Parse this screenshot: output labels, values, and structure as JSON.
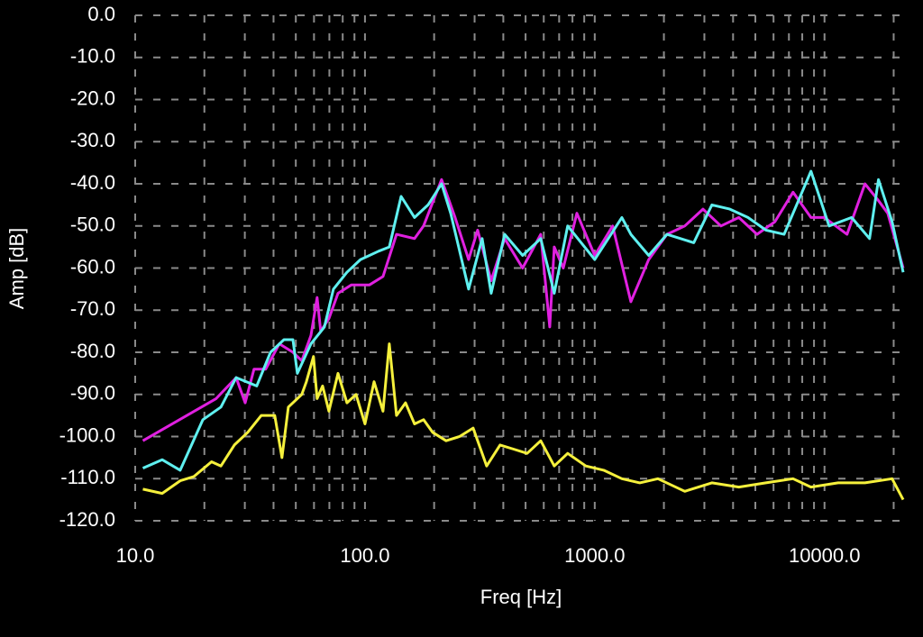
{
  "chart_data": {
    "type": "line",
    "x_label": "Freq [Hz]",
    "y_label": "Amp [dB]",
    "xscale": "log",
    "xlim": [
      10,
      22600
    ],
    "ylim": [
      -120,
      0
    ],
    "xticks": [
      {
        "value": 10,
        "label": "10.0"
      },
      {
        "value": 100,
        "label": "100.0"
      },
      {
        "value": 1000,
        "label": "1000.0"
      },
      {
        "value": 10000,
        "label": "10000.0"
      }
    ],
    "x_minor_ticks": [
      20,
      30,
      40,
      50,
      60,
      70,
      80,
      90,
      200,
      300,
      400,
      500,
      600,
      700,
      800,
      900,
      2000,
      3000,
      4000,
      5000,
      6000,
      7000,
      8000,
      9000,
      20000
    ],
    "yticks": [
      {
        "value": 0,
        "label": "0.0"
      },
      {
        "value": -10,
        "label": "-10.0"
      },
      {
        "value": -20,
        "label": "-20.0"
      },
      {
        "value": -30,
        "label": "-30.0"
      },
      {
        "value": -40,
        "label": "-40.0"
      },
      {
        "value": -50,
        "label": "-50.0"
      },
      {
        "value": -60,
        "label": "-60.0"
      },
      {
        "value": -70,
        "label": "-70.0"
      },
      {
        "value": -80,
        "label": "-80.0"
      },
      {
        "value": -90,
        "label": "-90.0"
      },
      {
        "value": -100,
        "label": "-100.0"
      },
      {
        "value": -110,
        "label": "-110.0"
      },
      {
        "value": -120,
        "label": "-120.0"
      }
    ],
    "grid": true,
    "series": [
      {
        "color": "#e020e0",
        "x": [
          10.8,
          22.5,
          27.5,
          30.1,
          32.9,
          37.0,
          42.4,
          48.6,
          53.1,
          58.2,
          61.9,
          64.2,
          69.7,
          76.3,
          87.3,
          104.6,
          119.8,
          137.2,
          164.3,
          179.8,
          215.4,
          246.8,
          282.5,
          309.2,
          354,
          405.5,
          485.3,
          582,
          636.8,
          666.4,
          729.5,
          835.7,
          1000,
          1197,
          1436,
          1718,
          2061,
          2466,
          2958,
          3540,
          4237,
          5082,
          6081,
          7295,
          8730,
          10000,
          12530,
          15000,
          17180,
          18840,
          22000
        ],
        "values": [
          -101,
          -91,
          -86,
          -92,
          -84,
          -84,
          -78,
          -80,
          -82,
          -76,
          -67,
          -75,
          -72,
          -66,
          -64,
          -64,
          -62,
          -52,
          -53,
          -50,
          -39,
          -48,
          -58,
          -51,
          -63,
          -53,
          -60,
          -52,
          -74,
          -55,
          -60,
          -47,
          -57,
          -50,
          -68,
          -58,
          -52,
          -50,
          -46,
          -50,
          -48,
          -52,
          -49,
          -42,
          -48,
          -48,
          -52,
          -40,
          -44,
          -47,
          -60
        ]
      },
      {
        "color": "#5ff0f0",
        "x": [
          10.8,
          13.1,
          15.7,
          19.7,
          23.6,
          27.5,
          33.8,
          38.8,
          44.4,
          48.6,
          50.8,
          58.2,
          66.6,
          72.9,
          83.5,
          95.6,
          114.6,
          127.6,
          143.6,
          164.3,
          188.2,
          215.4,
          236,
          282.5,
          323.6,
          354,
          405.5,
          485.3,
          582,
          666.4,
          762.4,
          1000,
          1312,
          1436,
          1718,
          2061,
          2698,
          3236,
          3873,
          4645,
          5559,
          6668,
          8730,
          10470,
          13120,
          15700,
          17180,
          19680,
          22000
        ],
        "values": [
          -107.5,
          -105.5,
          -108,
          -96,
          -93,
          -86,
          -88,
          -80,
          -77,
          -77,
          -85,
          -78,
          -74,
          -65,
          -61,
          -58,
          -56,
          -55,
          -43,
          -48,
          -45,
          -40,
          -47,
          -65,
          -53,
          -66,
          -52,
          -57,
          -53,
          -66,
          -50,
          -58,
          -48,
          -52,
          -57,
          -52,
          -54,
          -45,
          -46,
          -48,
          -51,
          -52,
          -37,
          -50,
          -48,
          -53,
          -39,
          -49,
          -61
        ]
      },
      {
        "color": "#f5f03c",
        "x": [
          10.8,
          13.1,
          15.7,
          18.0,
          21.5,
          23.6,
          27.0,
          30.9,
          35.4,
          40.5,
          43.5,
          46.4,
          53.1,
          55.6,
          59.7,
          61.9,
          65.4,
          69.7,
          76.3,
          83.5,
          91.4,
          100,
          109.5,
          119.8,
          127.6,
          137.2,
          150.2,
          164.3,
          179.8,
          196.9,
          225.4,
          258,
          295.6,
          338.4,
          387.3,
          443.6,
          508,
          582,
          666.4,
          762.4,
          914,
          1094,
          1312,
          1571,
          1884,
          2466,
          3236,
          4237,
          5559,
          7295,
          8730,
          11460,
          15000,
          19680,
          22000
        ],
        "values": [
          -112.5,
          -113.5,
          -110.5,
          -109.5,
          -106,
          -107,
          -102,
          -99,
          -95,
          -95,
          -105,
          -93,
          -90,
          -87,
          -81,
          -91,
          -88,
          -94,
          -85,
          -92,
          -90,
          -97,
          -87,
          -94,
          -78,
          -95,
          -92,
          -97,
          -96,
          -99,
          -101,
          -100,
          -98,
          -107,
          -102,
          -103,
          -104,
          -101,
          -107,
          -104,
          -107,
          -108,
          -110,
          -111,
          -110,
          -113,
          -111,
          -112,
          -111,
          -110,
          -112,
          -111,
          -111,
          -110,
          -115
        ]
      }
    ]
  }
}
